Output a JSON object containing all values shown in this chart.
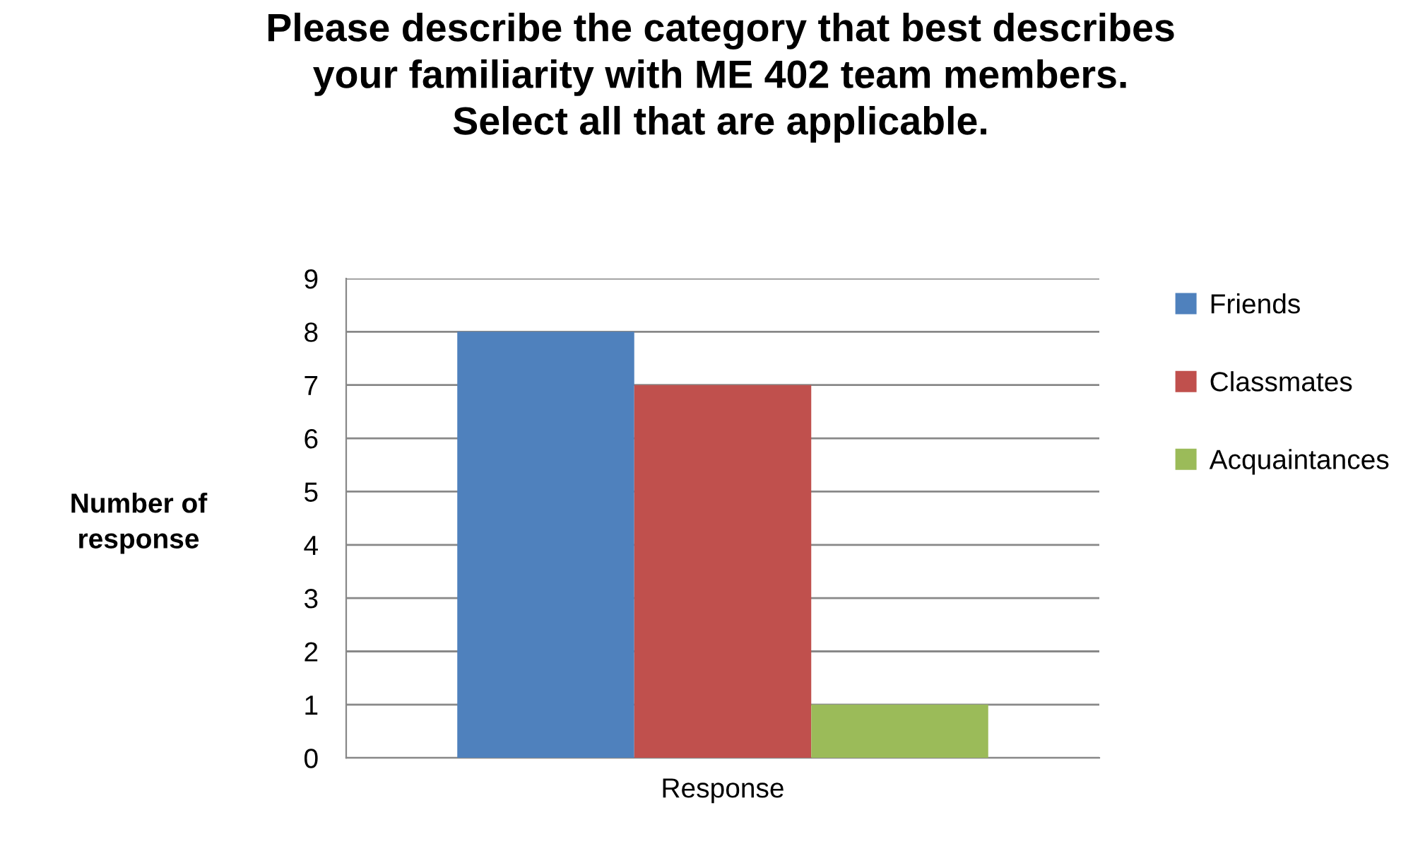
{
  "chart_data": {
    "type": "bar",
    "title": "Please describe the category that best describes\nyour familiarity with ME 402 team members.\nSelect all that are applicable.",
    "ylabel": "Number of\nresponse",
    "categories": [
      "Response"
    ],
    "series": [
      {
        "name": "Friends",
        "color": "#4f81bd",
        "values": [
          8
        ]
      },
      {
        "name": "Classmates",
        "color": "#c0504d",
        "values": [
          7
        ]
      },
      {
        "name": "Acquaintances",
        "color": "#9bbb59",
        "values": [
          1
        ]
      }
    ],
    "ylim": [
      0,
      9
    ],
    "yticks": [
      0,
      1,
      2,
      3,
      4,
      5,
      6,
      7,
      8,
      9
    ],
    "grid": "y",
    "legend": "right"
  }
}
